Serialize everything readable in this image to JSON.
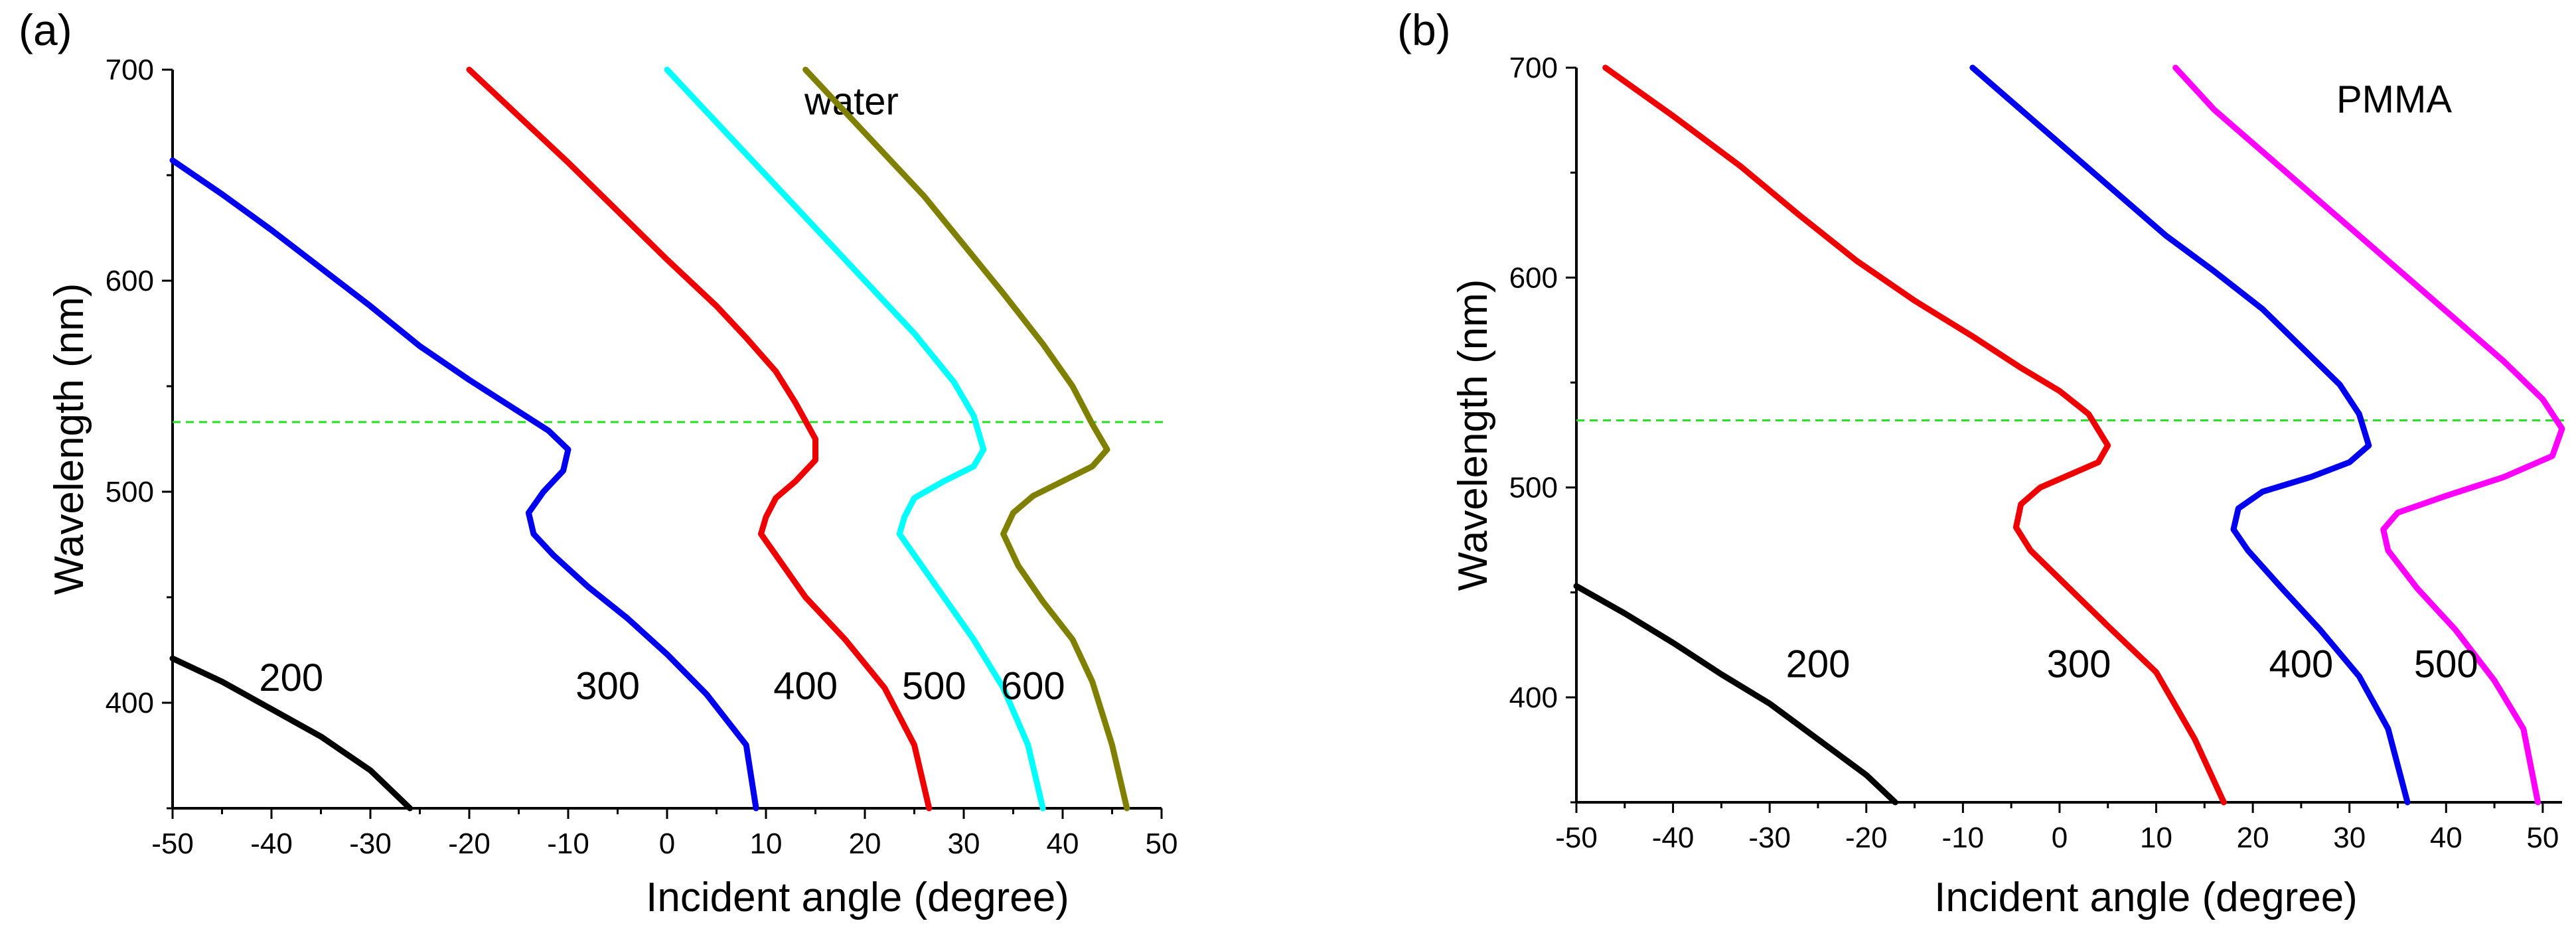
{
  "chart_data": [
    {
      "type": "line",
      "panel_label": "(a)",
      "title": "",
      "medium_label": "water",
      "xlabel": "Incident angle (degree)",
      "ylabel": "Wavelength (nm)",
      "xlim": [
        -50,
        50
      ],
      "ylim": [
        350,
        700
      ],
      "x_ticks": [
        -50,
        -40,
        -30,
        -20,
        -10,
        0,
        10,
        20,
        30,
        40,
        50
      ],
      "x_tick_labels": [
        "-50",
        "-40",
        "-30",
        "-20",
        "-10",
        "0",
        "10",
        "20",
        "30",
        "40",
        "50"
      ],
      "y_ticks": [
        400,
        500,
        600,
        700
      ],
      "y_tick_labels": [
        "400",
        "500",
        "600",
        "700"
      ],
      "reference_line": {
        "y": 533,
        "color": "#22dd22",
        "style": "dashed"
      },
      "series": [
        {
          "name": "200",
          "label": "200",
          "color": "#000000",
          "points": [
            [
              -50,
              421
            ],
            [
              -45,
              410
            ],
            [
              -40,
              397
            ],
            [
              -35,
              384
            ],
            [
              -30,
              368
            ],
            [
              -26,
              350
            ]
          ],
          "label_at": [
            -38,
            412
          ]
        },
        {
          "name": "300",
          "label": "300",
          "color": "#0000ee",
          "points": [
            [
              -50,
              657
            ],
            [
              -45,
              641
            ],
            [
              -40,
              624
            ],
            [
              -35,
              606
            ],
            [
              -30,
              588
            ],
            [
              -25,
              569
            ],
            [
              -20,
              553
            ],
            [
              -15,
              538
            ],
            [
              -12,
              529
            ],
            [
              -10,
              520
            ],
            [
              -10.5,
              510
            ],
            [
              -12.5,
              500
            ],
            [
              -14,
              490
            ],
            [
              -13.5,
              480
            ],
            [
              -11.5,
              470
            ],
            [
              -8,
              455
            ],
            [
              -4,
              440
            ],
            [
              0,
              423
            ],
            [
              4,
              404
            ],
            [
              8,
              380
            ],
            [
              9,
              350
            ]
          ],
          "label_at": [
            -6,
            408
          ]
        },
        {
          "name": "400",
          "label": "400",
          "color": "#ee0000",
          "points": [
            [
              -20,
              700
            ],
            [
              -15,
              678
            ],
            [
              -10,
              656
            ],
            [
              -5,
              633
            ],
            [
              0,
              610
            ],
            [
              5,
              588
            ],
            [
              8,
              573
            ],
            [
              11,
              557
            ],
            [
              13,
              542
            ],
            [
              15,
              525
            ],
            [
              15,
              515
            ],
            [
              13,
              505
            ],
            [
              11,
              497
            ],
            [
              10,
              488
            ],
            [
              9.5,
              480
            ],
            [
              11,
              470
            ],
            [
              14,
              450
            ],
            [
              18,
              430
            ],
            [
              22,
              407
            ],
            [
              25,
              380
            ],
            [
              26.5,
              350
            ]
          ],
          "label_at": [
            14,
            408
          ]
        },
        {
          "name": "500",
          "label": "500",
          "color": "#00ffff",
          "points": [
            [
              0,
              700
            ],
            [
              5,
              675
            ],
            [
              10,
              650
            ],
            [
              15,
              625
            ],
            [
              20,
              600
            ],
            [
              25,
              575
            ],
            [
              29,
              552
            ],
            [
              31,
              536
            ],
            [
              32,
              520
            ],
            [
              31,
              512
            ],
            [
              28,
              505
            ],
            [
              25,
              497
            ],
            [
              24,
              488
            ],
            [
              23.5,
              480
            ],
            [
              25,
              470
            ],
            [
              28,
              450
            ],
            [
              31,
              430
            ],
            [
              34,
              407
            ],
            [
              36.5,
              380
            ],
            [
              38,
              350
            ]
          ],
          "label_at": [
            27,
            408
          ]
        },
        {
          "name": "600",
          "label": "600",
          "color": "#808000",
          "points": [
            [
              14,
              700
            ],
            [
              18,
              680
            ],
            [
              22,
              660
            ],
            [
              26,
              640
            ],
            [
              30,
              617
            ],
            [
              34,
              594
            ],
            [
              38,
              570
            ],
            [
              41,
              550
            ],
            [
              43,
              532
            ],
            [
              44.5,
              520
            ],
            [
              43,
              512
            ],
            [
              40,
              505
            ],
            [
              37,
              498
            ],
            [
              35,
              490
            ],
            [
              34,
              480
            ],
            [
              35.5,
              465
            ],
            [
              38,
              448
            ],
            [
              41,
              430
            ],
            [
              43,
              410
            ],
            [
              45,
              380
            ],
            [
              46.5,
              350
            ]
          ],
          "label_at": [
            37,
            408
          ]
        }
      ]
    },
    {
      "type": "line",
      "panel_label": "(b)",
      "title": "",
      "medium_label": "PMMA",
      "xlabel": "Incident angle (degree)",
      "ylabel": "Wavelength (nm)",
      "xlim": [
        -50,
        52
      ],
      "ylim": [
        350,
        700
      ],
      "x_ticks": [
        -50,
        -40,
        -30,
        -20,
        -10,
        0,
        10,
        20,
        30,
        40,
        50
      ],
      "x_tick_labels": [
        "-50",
        "-40",
        "-30",
        "-20",
        "-10",
        "0",
        "10",
        "20",
        "30",
        "40",
        "50"
      ],
      "y_ticks": [
        400,
        500,
        600,
        700
      ],
      "y_tick_labels": [
        "400",
        "500",
        "600",
        "700"
      ],
      "reference_line": {
        "y": 532,
        "color": "#22dd22",
        "style": "dashed"
      },
      "series": [
        {
          "name": "200",
          "label": "200",
          "color": "#000000",
          "points": [
            [
              -50,
              453
            ],
            [
              -45,
              440
            ],
            [
              -40,
              426
            ],
            [
              -35,
              411
            ],
            [
              -30,
              397
            ],
            [
              -25,
              380
            ],
            [
              -20,
              363
            ],
            [
              -17,
              350
            ]
          ],
          "label_at": [
            -25,
            416
          ]
        },
        {
          "name": "300",
          "label": "300",
          "color": "#ee0000",
          "points": [
            [
              -47,
              700
            ],
            [
              -40,
              677
            ],
            [
              -33,
              653
            ],
            [
              -27,
              630
            ],
            [
              -21,
              608
            ],
            [
              -15,
              589
            ],
            [
              -9,
              572
            ],
            [
              -4,
              557
            ],
            [
              0,
              546
            ],
            [
              3,
              535
            ],
            [
              5,
              520
            ],
            [
              4,
              512
            ],
            [
              1,
              506
            ],
            [
              -2,
              500
            ],
            [
              -4,
              492
            ],
            [
              -4.5,
              481
            ],
            [
              -3,
              470
            ],
            [
              1,
              452
            ],
            [
              5,
              434
            ],
            [
              10,
              412
            ],
            [
              14,
              380
            ],
            [
              17,
              350
            ]
          ],
          "label_at": [
            2,
            416
          ]
        },
        {
          "name": "400",
          "label": "400",
          "color": "#0000ee",
          "points": [
            [
              -9,
              700
            ],
            [
              -4,
              680
            ],
            [
              1,
              660
            ],
            [
              6,
              640
            ],
            [
              11,
              620
            ],
            [
              16,
              603
            ],
            [
              21,
              585
            ],
            [
              25,
              567
            ],
            [
              29,
              549
            ],
            [
              31,
              535
            ],
            [
              32,
              520
            ],
            [
              30,
              512
            ],
            [
              26,
              505
            ],
            [
              21,
              498
            ],
            [
              18.5,
              490
            ],
            [
              18,
              480
            ],
            [
              19.5,
              470
            ],
            [
              23,
              452
            ],
            [
              27,
              432
            ],
            [
              31,
              410
            ],
            [
              34,
              385
            ],
            [
              36,
              350
            ]
          ],
          "label_at": [
            25,
            416
          ]
        },
        {
          "name": "500",
          "label": "500",
          "color": "#ff00ff",
          "points": [
            [
              12,
              700
            ],
            [
              16,
              680
            ],
            [
              21,
              660
            ],
            [
              26,
              640
            ],
            [
              31,
              620
            ],
            [
              36,
              600
            ],
            [
              41,
              580
            ],
            [
              46,
              560
            ],
            [
              50,
              542
            ],
            [
              52,
              528
            ],
            [
              51,
              515
            ],
            [
              46,
              505
            ],
            [
              40,
              496
            ],
            [
              35,
              488
            ],
            [
              33.5,
              480
            ],
            [
              34,
              470
            ],
            [
              37,
              452
            ],
            [
              41,
              432
            ],
            [
              45,
              408
            ],
            [
              48,
              385
            ],
            [
              49.5,
              350
            ]
          ],
          "label_at": [
            40,
            416
          ]
        }
      ]
    }
  ]
}
